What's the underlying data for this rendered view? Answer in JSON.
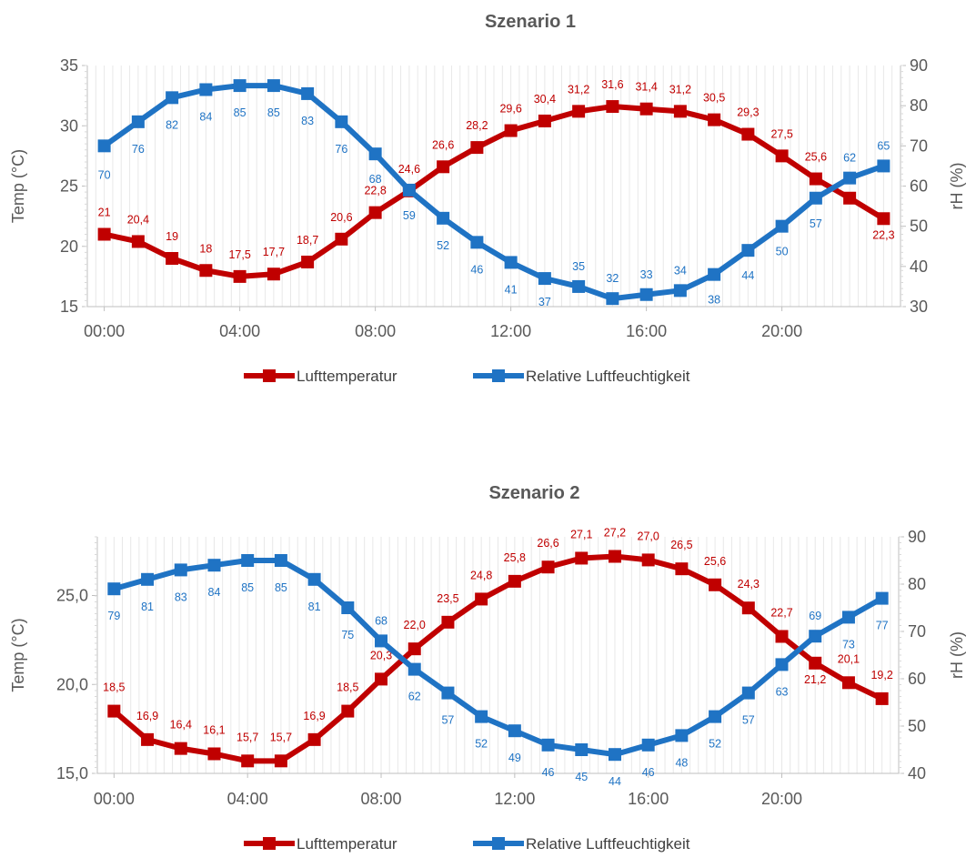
{
  "colors": {
    "temperature": "#C00000",
    "humidity": "#1F73C4",
    "text": "#595959",
    "grid": "#D9D9D9"
  },
  "chart_data": [
    {
      "type": "line",
      "title": "Szenario 1",
      "ylabel": "Temp (°C)",
      "y2label": "rH (%)",
      "x": [
        "00:00",
        "01:00",
        "02:00",
        "03:00",
        "04:00",
        "05:00",
        "06:00",
        "07:00",
        "08:00",
        "09:00",
        "10:00",
        "11:00",
        "12:00",
        "13:00",
        "14:00",
        "15:00",
        "16:00",
        "17:00",
        "18:00",
        "19:00",
        "20:00",
        "21:00",
        "22:00",
        "23:00"
      ],
      "xticks": [
        "00:00",
        "04:00",
        "08:00",
        "12:00",
        "16:00",
        "20:00"
      ],
      "ylim": [
        15,
        35
      ],
      "yticks": [
        "15",
        "20",
        "25",
        "30",
        "35"
      ],
      "y2lim": [
        30,
        90
      ],
      "y2ticks": [
        "30",
        "40",
        "50",
        "60",
        "70",
        "80",
        "90"
      ],
      "legend": "bottom",
      "series": [
        {
          "name": "Lufttemperatur",
          "axis": "left",
          "values": [
            21,
            20.4,
            19,
            18,
            17.5,
            17.7,
            18.7,
            20.6,
            22.8,
            24.6,
            26.6,
            28.2,
            29.6,
            30.4,
            31.2,
            31.6,
            31.4,
            31.2,
            30.5,
            29.3,
            27.5,
            25.6,
            24,
            22.3
          ],
          "labels": [
            "21",
            "20,4",
            "19",
            "18",
            "17,5",
            "17,7",
            "18,7",
            "20,6",
            "22,8",
            "24,6",
            "26,6",
            "28,2",
            "29,6",
            "30,4",
            "31,2",
            "31,6",
            "31,4",
            "31,2",
            "30,5",
            "29,3",
            "27,5",
            "25,6",
            "24",
            "22,3"
          ]
        },
        {
          "name": "Relative Luftfeuchtigkeit",
          "axis": "right",
          "values": [
            70,
            76,
            82,
            84,
            85,
            85,
            83,
            76,
            68,
            59,
            52,
            46,
            41,
            37,
            35,
            32,
            33,
            34,
            38,
            44,
            50,
            57,
            62,
            65
          ],
          "labels": [
            "70",
            "76",
            "82",
            "84",
            "85",
            "85",
            "83",
            "76",
            "68",
            "59",
            "52",
            "46",
            "41",
            "37",
            "35",
            "32",
            "33",
            "34",
            "38",
            "44",
            "50",
            "57",
            "62",
            "65"
          ]
        }
      ]
    },
    {
      "type": "line",
      "title": "Szenario 2",
      "ylabel": "Temp (°C)",
      "y2label": "rH (%)",
      "x": [
        "00:00",
        "01:00",
        "02:00",
        "03:00",
        "04:00",
        "05:00",
        "06:00",
        "07:00",
        "08:00",
        "09:00",
        "10:00",
        "11:00",
        "12:00",
        "13:00",
        "14:00",
        "15:00",
        "16:00",
        "17:00",
        "18:00",
        "19:00",
        "20:00",
        "21:00",
        "22:00",
        "23:00"
      ],
      "xticks": [
        "00:00",
        "04:00",
        "08:00",
        "12:00",
        "16:00",
        "20:00"
      ],
      "ylim": [
        15,
        28.3
      ],
      "yticks": [
        "15,0",
        "20,0",
        "25,0"
      ],
      "y2lim": [
        40,
        90
      ],
      "y2ticks": [
        "40",
        "50",
        "60",
        "70",
        "80",
        "90"
      ],
      "legend": "bottom",
      "series": [
        {
          "name": "Lufttemperatur",
          "axis": "left",
          "values": [
            18.5,
            16.9,
            16.4,
            16.1,
            15.7,
            15.7,
            16.9,
            18.5,
            20.3,
            22.0,
            23.5,
            24.8,
            25.8,
            26.6,
            27.1,
            27.2,
            27.0,
            26.5,
            25.6,
            24.3,
            22.7,
            21.2,
            20.1,
            19.2
          ],
          "labels": [
            "18,5",
            "16,9",
            "16,4",
            "16,1",
            "15,7",
            "15,7",
            "16,9",
            "18,5",
            "20,3",
            "22,0",
            "23,5",
            "24,8",
            "25,8",
            "26,6",
            "27,1",
            "27,2",
            "27,0",
            "26,5",
            "25,6",
            "24,3",
            "22,7",
            "21,2",
            "20,1",
            "19,2"
          ]
        },
        {
          "name": "Relative Luftfeuchtigkeit",
          "axis": "right",
          "values": [
            79,
            81,
            83,
            84,
            85,
            85,
            81,
            75,
            68,
            62,
            57,
            52,
            49,
            46,
            45,
            44,
            46,
            48,
            52,
            57,
            63,
            69,
            73,
            77
          ],
          "labels": [
            "79",
            "81",
            "83",
            "84",
            "85",
            "85",
            "81",
            "75",
            "68",
            "62",
            "57",
            "52",
            "49",
            "46",
            "45",
            "44",
            "46",
            "48",
            "52",
            "57",
            "63",
            "69",
            "73",
            "77"
          ]
        }
      ]
    }
  ]
}
